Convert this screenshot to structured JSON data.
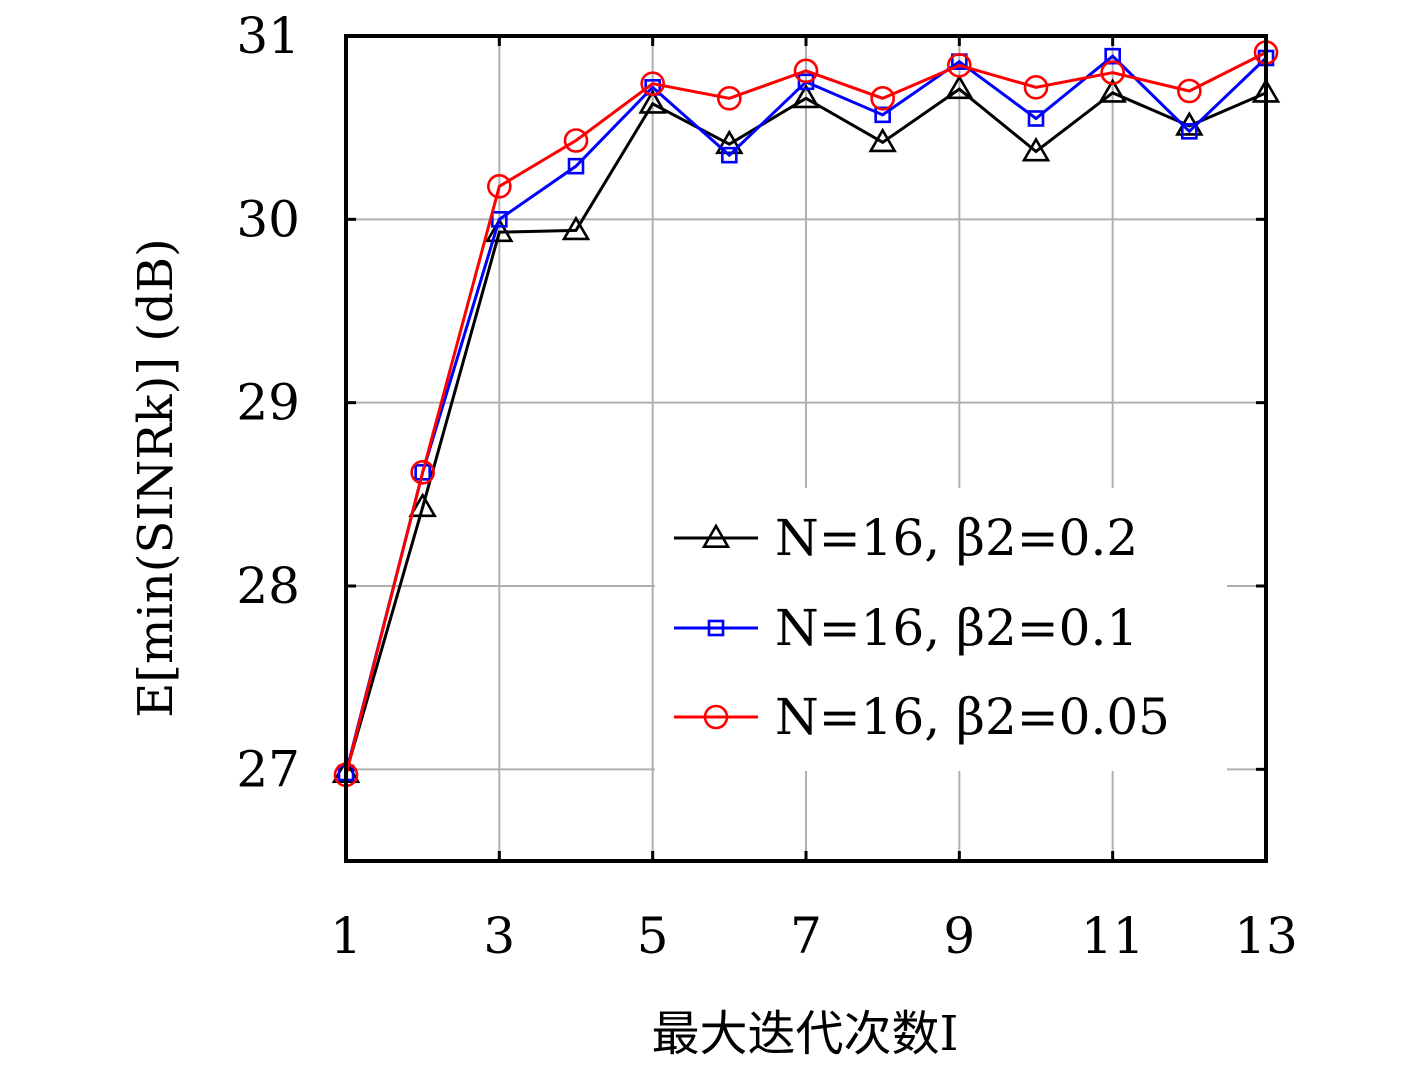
{
  "chart_data": {
    "type": "line",
    "xlabel": "最大迭代次数I",
    "ylabel": "E[min(SINRk)] (dB)",
    "xlim": [
      1,
      13
    ],
    "ylim": [
      26.5,
      31
    ],
    "x_ticks": [
      1,
      3,
      5,
      7,
      9,
      11,
      13
    ],
    "y_ticks": [
      27,
      28,
      29,
      30,
      31
    ],
    "grid": true,
    "legend_position": "lower-right",
    "x": [
      1,
      2,
      3,
      4,
      5,
      6,
      7,
      8,
      9,
      10,
      11,
      12,
      13
    ],
    "series": [
      {
        "name": "N=16, β2=0.2",
        "color": "#000000",
        "marker": "triangle",
        "values": [
          26.98,
          28.43,
          29.93,
          29.94,
          30.63,
          30.41,
          30.66,
          30.42,
          30.71,
          30.37,
          30.69,
          30.51,
          30.69
        ]
      },
      {
        "name": "N=16, β2=0.1",
        "color": "#0000ff",
        "marker": "square",
        "values": [
          26.98,
          28.62,
          30.0,
          30.29,
          30.72,
          30.35,
          30.75,
          30.57,
          30.86,
          30.55,
          30.89,
          30.48,
          30.88
        ]
      },
      {
        "name": "N=16, β2=0.05",
        "color": "#ff0000",
        "marker": "circle",
        "values": [
          26.97,
          28.62,
          30.18,
          30.43,
          30.74,
          30.66,
          30.81,
          30.66,
          30.84,
          30.72,
          30.8,
          30.7,
          30.91
        ]
      }
    ]
  }
}
